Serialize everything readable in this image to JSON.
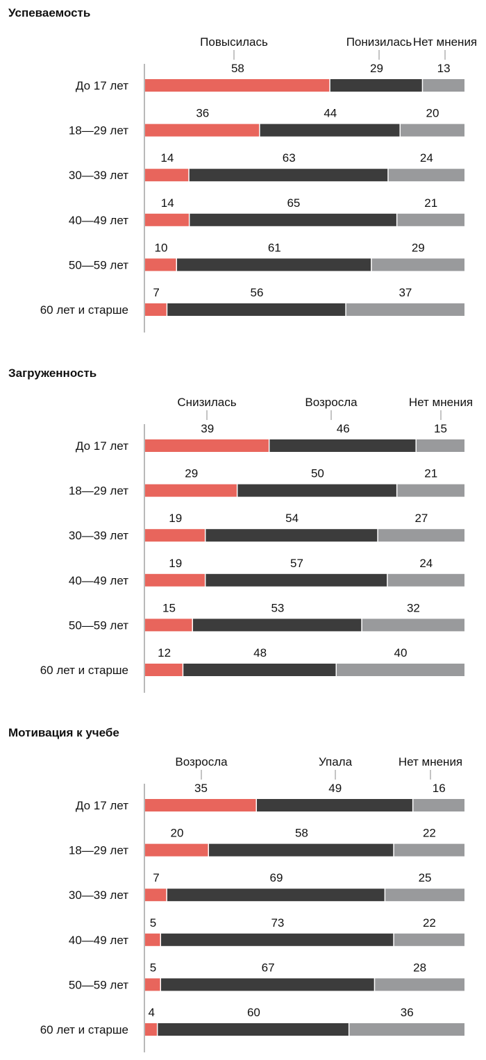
{
  "colors": {
    "red": "#e8655c",
    "dark": "#3c3c3c",
    "gray": "#999a9c",
    "axis": "#8a8a8a",
    "leader": "#8a8a8a"
  },
  "chart_data": [
    {
      "type": "bar",
      "stacked": true,
      "orientation": "horizontal",
      "percent": true,
      "title": "Успеваемость",
      "categories": [
        "До 17 лет",
        "18—29 лет",
        "30—39 лет",
        "40—49 лет",
        "50—59 лет",
        "60 лет и старше"
      ],
      "legend_position": "top",
      "series": [
        {
          "name": "Повысилась",
          "color": "#e8655c",
          "values": [
            58,
            36,
            14,
            14,
            10,
            7
          ]
        },
        {
          "name": "Понизилась",
          "color": "#3c3c3c",
          "values": [
            29,
            44,
            63,
            65,
            61,
            56
          ]
        },
        {
          "name": "Нет мнения",
          "color": "#999a9c",
          "values": [
            13,
            20,
            24,
            21,
            29,
            37
          ]
        }
      ]
    },
    {
      "type": "bar",
      "stacked": true,
      "orientation": "horizontal",
      "percent": true,
      "title": "Загруженность",
      "categories": [
        "До 17 лет",
        "18—29 лет",
        "30—39 лет",
        "40—49 лет",
        "50—59 лет",
        "60 лет и старше"
      ],
      "legend_position": "top",
      "series": [
        {
          "name": "Снизилась",
          "color": "#e8655c",
          "values": [
            39,
            29,
            19,
            19,
            15,
            12
          ]
        },
        {
          "name": "Возросла",
          "color": "#3c3c3c",
          "values": [
            46,
            50,
            54,
            57,
            53,
            48
          ]
        },
        {
          "name": "Нет мнения",
          "color": "#999a9c",
          "values": [
            15,
            21,
            27,
            24,
            32,
            40
          ]
        }
      ]
    },
    {
      "type": "bar",
      "stacked": true,
      "orientation": "horizontal",
      "percent": true,
      "title": "Мотивация к учебе",
      "categories": [
        "До 17 лет",
        "18—29 лет",
        "30—39 лет",
        "40—49 лет",
        "50—59 лет",
        "60 лет и старше"
      ],
      "legend_position": "top",
      "series": [
        {
          "name": "Возросла",
          "color": "#e8655c",
          "values": [
            35,
            20,
            7,
            5,
            5,
            4
          ]
        },
        {
          "name": "Упала",
          "color": "#3c3c3c",
          "values": [
            49,
            58,
            69,
            73,
            67,
            60
          ]
        },
        {
          "name": "Нет мнения",
          "color": "#999a9c",
          "values": [
            16,
            22,
            25,
            22,
            28,
            36
          ]
        }
      ]
    }
  ]
}
